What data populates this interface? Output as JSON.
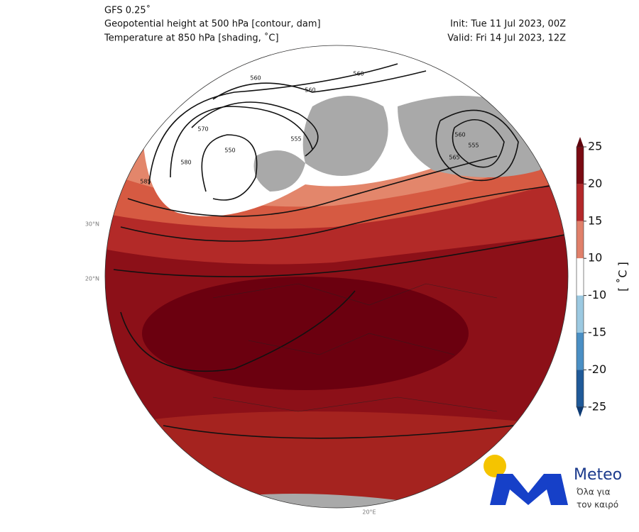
{
  "header": {
    "model": "GFS 0.25˚",
    "line1": "Geopotential height at 500 hPa [contour, dam]",
    "line2": "Temperature at 850 hPa [shading, ˚C]",
    "init": "Init: Tue 11 Jul 2023, 00Z",
    "valid": "Valid: Fri 14 Jul 2023, 12Z"
  },
  "colorbar": {
    "label": "[ ˚C ]",
    "ticks": [
      25,
      20,
      15,
      10,
      -10,
      -15,
      -20,
      -25
    ],
    "colors": [
      "#7a0a12",
      "#b3282a",
      "#e0806a",
      "#ffffff",
      "#9cc9e1",
      "#4a8fc4",
      "#1f5a99"
    ],
    "over_color": "#5e000b",
    "under_color": "#0d3a73"
  },
  "contour_labels": [
    560,
    560,
    560,
    555,
    550,
    570,
    580,
    585,
    560,
    555,
    565
  ],
  "grid_labels": [
    "30°N",
    "20°N",
    "20°E"
  ],
  "logo": {
    "name": "Meteo",
    "tagline1": "Όλα για",
    "tagline2": "τον καιρό"
  }
}
